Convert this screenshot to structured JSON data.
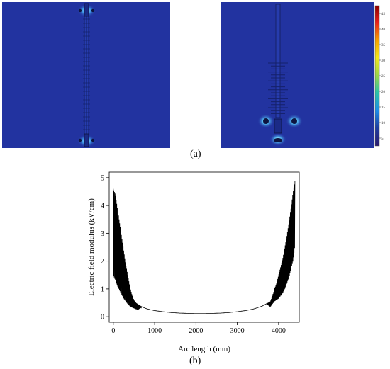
{
  "figure": {
    "caption_a": "(a)",
    "caption_b": "(b)"
  },
  "colorbar": {
    "ticks": [
      "45",
      "40",
      "35",
      "30",
      "25",
      "20",
      "15",
      "10",
      "5"
    ],
    "colors": [
      "#8b0000",
      "#e8201a",
      "#f6a300",
      "#f4e61a",
      "#9ad64a",
      "#2bc2a8",
      "#1e8ce8",
      "#1f3ea0",
      "#2a1b6e"
    ]
  },
  "colors": {
    "sim_background": "#2233a0",
    "field_glow": "#6fd6ff",
    "curve": "#000000"
  },
  "chart_data": {
    "type": "line",
    "xlabel": "Arc length (mm)",
    "ylabel": "Electric field modulus (kV/cm)",
    "xlim": [
      -100,
      4500
    ],
    "ylim": [
      -0.2,
      5.2
    ],
    "xticks": [
      0,
      1000,
      2000,
      3000,
      4000
    ],
    "yticks": [
      0,
      1,
      2,
      3,
      4,
      5
    ],
    "series": [
      {
        "x": [
          0,
          50,
          100,
          150,
          200,
          250,
          300,
          350,
          400,
          450,
          500,
          550,
          600,
          700,
          800,
          900,
          1000,
          1200,
          1400,
          1600,
          1800,
          2000,
          2200,
          2400,
          2600,
          2800,
          3000,
          3200,
          3400,
          3600,
          3700,
          3800,
          3850,
          3900,
          3950,
          4000,
          4050,
          4100,
          4150,
          4200,
          4250,
          4300,
          4350,
          4400
        ],
        "y_upper": [
          4.6,
          4.4,
          3.9,
          3.4,
          2.9,
          2.4,
          1.9,
          1.5,
          1.1,
          0.8,
          0.6,
          0.5,
          0.45,
          0.35,
          0.29,
          0.25,
          0.22,
          0.18,
          0.15,
          0.13,
          0.12,
          0.11,
          0.11,
          0.12,
          0.13,
          0.15,
          0.18,
          0.22,
          0.28,
          0.38,
          0.46,
          0.55,
          0.75,
          1.0,
          1.2,
          1.5,
          1.8,
          2.1,
          2.5,
          2.9,
          3.4,
          3.9,
          4.5,
          4.9
        ],
        "y_lower": [
          1.5,
          1.3,
          1.1,
          0.95,
          0.8,
          0.65,
          0.55,
          0.45,
          0.38,
          0.33,
          0.3,
          0.27,
          0.25,
          0.35,
          0.29,
          0.25,
          0.22,
          0.18,
          0.15,
          0.13,
          0.12,
          0.11,
          0.11,
          0.12,
          0.13,
          0.15,
          0.18,
          0.22,
          0.28,
          0.38,
          0.46,
          0.35,
          0.45,
          0.55,
          0.6,
          0.65,
          0.75,
          0.85,
          1.0,
          1.2,
          1.4,
          1.7,
          2.0,
          2.6
        ]
      }
    ]
  }
}
